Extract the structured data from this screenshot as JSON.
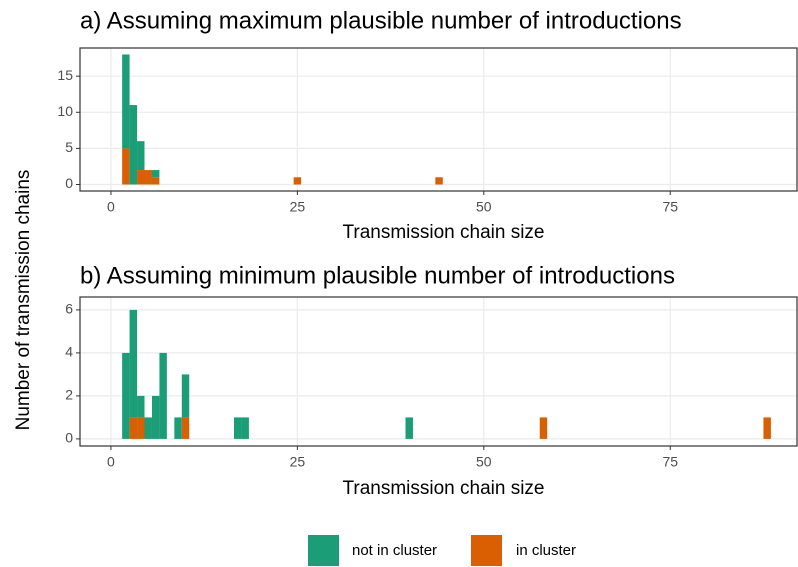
{
  "chart_data": [
    {
      "type": "bar",
      "title": "a) Assuming maximum plausible number of introductions",
      "x_label": "Transmission chain size",
      "y_label": "Number of transmission chains",
      "x": [
        2,
        3,
        4,
        5,
        6,
        25,
        44
      ],
      "series": [
        {
          "name": "in cluster",
          "color": "#d95f02",
          "values": [
            5,
            0,
            2,
            2,
            1,
            1,
            1
          ]
        },
        {
          "name": "not in cluster",
          "color": "#1b9e77",
          "values": [
            13,
            11,
            4,
            0,
            1,
            0,
            0
          ]
        }
      ],
      "xlim": [
        -4.15,
        92
      ],
      "xticks": [
        0,
        25,
        50,
        75
      ],
      "ylim": [
        -0.9,
        18.9
      ],
      "yticks": [
        0,
        5,
        10,
        15
      ],
      "grid": true
    },
    {
      "type": "bar",
      "title": "b) Assuming minimum plausible number of introductions",
      "x_label": "Transmission chain size",
      "x": [
        2,
        3,
        4,
        5,
        6,
        7,
        9,
        10,
        17,
        18,
        40,
        58,
        88
      ],
      "series": [
        {
          "name": "in cluster",
          "color": "#d95f02",
          "values": [
            0,
            1,
            1,
            0,
            0,
            0,
            0,
            1,
            0,
            0,
            0,
            1,
            1
          ]
        },
        {
          "name": "not in cluster",
          "color": "#1b9e77",
          "values": [
            4,
            5,
            1,
            1,
            2,
            4,
            1,
            2,
            1,
            1,
            1,
            0,
            0
          ]
        }
      ],
      "xlim": [
        -4.15,
        92
      ],
      "xticks": [
        0,
        25,
        50,
        75
      ],
      "ylim": [
        -0.33,
        6.6
      ],
      "yticks": [
        0,
        2,
        4,
        6
      ],
      "grid": true
    }
  ]
}
